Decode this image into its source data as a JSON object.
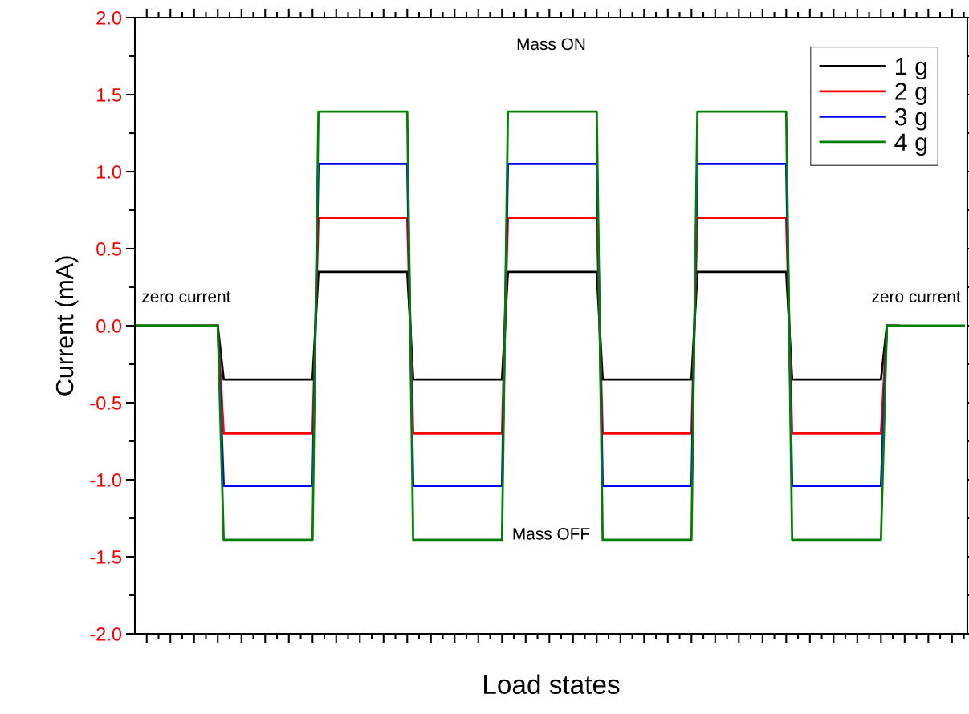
{
  "chart_data": {
    "type": "line",
    "xlabel": "Load states",
    "ylabel": "Current (mA)",
    "categories": [
      null,
      null,
      null,
      null,
      null,
      null,
      null,
      null,
      null,
      null,
      null,
      null,
      null,
      null,
      null,
      null,
      null,
      null,
      null,
      null,
      null,
      null,
      null,
      null,
      null,
      null,
      null,
      null,
      null,
      null,
      null,
      null,
      null,
      null,
      null,
      null,
      null,
      null,
      null,
      null,
      null,
      null,
      null,
      null,
      null,
      null,
      null,
      null,
      null,
      null,
      null,
      null,
      null,
      null,
      null,
      null,
      null,
      null,
      null,
      null,
      null,
      null,
      null,
      null,
      null,
      null,
      null,
      null,
      null,
      null,
      null,
      null,
      null,
      null,
      null,
      null,
      null,
      null,
      null,
      null,
      null,
      null,
      null,
      null,
      null,
      null,
      null,
      null,
      null,
      null,
      null,
      null,
      null,
      null,
      null,
      null,
      null,
      null,
      null,
      null,
      null,
      null,
      null,
      null,
      null,
      null,
      null,
      null,
      null,
      null,
      null,
      null,
      null,
      null,
      null,
      null,
      null,
      null,
      null,
      null,
      null,
      null,
      null,
      null,
      null,
      null,
      null,
      null,
      null,
      null,
      null,
      null,
      null,
      null,
      null,
      null,
      null,
      null,
      null,
      null,
      null
    ],
    "series": [
      {
        "name": "1 g",
        "color": "#000000",
        "values": [
          0,
          0,
          0,
          0,
          0,
          0,
          0,
          0,
          0,
          0,
          0,
          0,
          0,
          0,
          0,
          -0.35,
          -0.35,
          -0.35,
          -0.35,
          -0.35,
          -0.35,
          -0.35,
          -0.35,
          -0.35,
          -0.35,
          -0.35,
          -0.35,
          -0.35,
          -0.35,
          -0.35,
          -0.35,
          0.35,
          0.35,
          0.35,
          0.35,
          0.35,
          0.35,
          0.35,
          0.35,
          0.35,
          0.35,
          0.35,
          0.35,
          0.35,
          0.35,
          0.35,
          0.35,
          -0.35,
          -0.35,
          -0.35,
          -0.35,
          -0.35,
          -0.35,
          -0.35,
          -0.35,
          -0.35,
          -0.35,
          -0.35,
          -0.35,
          -0.35,
          -0.35,
          -0.35,
          -0.35,
          0.35,
          0.35,
          0.35,
          0.35,
          0.35,
          0.35,
          0.35,
          0.35,
          0.35,
          0.35,
          0.35,
          0.35,
          0.35,
          0.35,
          0.35,
          0.35,
          -0.35,
          -0.35,
          -0.35,
          -0.35,
          -0.35,
          -0.35,
          -0.35,
          -0.35,
          -0.35,
          -0.35,
          -0.35,
          -0.35,
          -0.35,
          -0.35,
          -0.35,
          -0.35,
          0.35,
          0.35,
          0.35,
          0.35,
          0.35,
          0.35,
          0.35,
          0.35,
          0.35,
          0.35,
          0.35,
          0.35,
          0.35,
          0.35,
          0.35,
          0.35,
          -0.35,
          -0.35,
          -0.35,
          -0.35,
          -0.35,
          -0.35,
          -0.35,
          -0.35,
          -0.35,
          -0.35,
          -0.35,
          -0.35,
          -0.35,
          -0.35,
          -0.35,
          -0.35,
          0,
          0,
          0,
          null,
          null,
          null,
          null,
          null,
          null,
          null,
          null,
          null,
          null,
          null
        ]
      },
      {
        "name": "2 g",
        "color": "#ff0000",
        "values": [
          null,
          null,
          null,
          null,
          null,
          null,
          null,
          null,
          null,
          null,
          null,
          null,
          null,
          0,
          0,
          -0.7,
          -0.7,
          -0.7,
          -0.7,
          -0.7,
          -0.7,
          -0.7,
          -0.7,
          -0.7,
          -0.7,
          -0.7,
          -0.7,
          -0.7,
          -0.7,
          -0.7,
          -0.7,
          0.7,
          0.7,
          0.7,
          0.7,
          0.7,
          0.7,
          0.7,
          0.7,
          0.7,
          0.7,
          0.7,
          0.7,
          0.7,
          0.7,
          0.7,
          0.7,
          -0.7,
          -0.7,
          -0.7,
          -0.7,
          -0.7,
          -0.7,
          -0.7,
          -0.7,
          -0.7,
          -0.7,
          -0.7,
          -0.7,
          -0.7,
          -0.7,
          -0.7,
          -0.7,
          0.7,
          0.7,
          0.7,
          0.7,
          0.7,
          0.7,
          0.7,
          0.7,
          0.7,
          0.7,
          0.7,
          0.7,
          0.7,
          0.7,
          0.7,
          0.7,
          -0.7,
          -0.7,
          -0.7,
          -0.7,
          -0.7,
          -0.7,
          -0.7,
          -0.7,
          -0.7,
          -0.7,
          -0.7,
          -0.7,
          -0.7,
          -0.7,
          -0.7,
          -0.7,
          0.7,
          0.7,
          0.7,
          0.7,
          0.7,
          0.7,
          0.7,
          0.7,
          0.7,
          0.7,
          0.7,
          0.7,
          0.7,
          0.7,
          0.7,
          0.7,
          -0.7,
          -0.7,
          -0.7,
          -0.7,
          -0.7,
          -0.7,
          -0.7,
          -0.7,
          -0.7,
          -0.7,
          -0.7,
          -0.7,
          -0.7,
          -0.7,
          -0.7,
          -0.7,
          0,
          0,
          null,
          null,
          null,
          null,
          null,
          null,
          null,
          null,
          null,
          null,
          null,
          null
        ]
      },
      {
        "name": "3 g",
        "color": "#0000ff",
        "values": [
          null,
          null,
          null,
          null,
          null,
          null,
          null,
          null,
          null,
          null,
          null,
          null,
          null,
          null,
          0,
          -1.04,
          -1.04,
          -1.04,
          -1.04,
          -1.04,
          -1.04,
          -1.04,
          -1.04,
          -1.04,
          -1.04,
          -1.04,
          -1.04,
          -1.04,
          -1.04,
          -1.04,
          -1.04,
          1.05,
          1.05,
          1.05,
          1.05,
          1.05,
          1.05,
          1.05,
          1.05,
          1.05,
          1.05,
          1.05,
          1.05,
          1.05,
          1.05,
          1.05,
          1.05,
          -1.04,
          -1.04,
          -1.04,
          -1.04,
          -1.04,
          -1.04,
          -1.04,
          -1.04,
          -1.04,
          -1.04,
          -1.04,
          -1.04,
          -1.04,
          -1.04,
          -1.04,
          -1.04,
          1.05,
          1.05,
          1.05,
          1.05,
          1.05,
          1.05,
          1.05,
          1.05,
          1.05,
          1.05,
          1.05,
          1.05,
          1.05,
          1.05,
          1.05,
          1.05,
          -1.04,
          -1.04,
          -1.04,
          -1.04,
          -1.04,
          -1.04,
          -1.04,
          -1.04,
          -1.04,
          -1.04,
          -1.04,
          -1.04,
          -1.04,
          -1.04,
          -1.04,
          -1.04,
          1.05,
          1.05,
          1.05,
          1.05,
          1.05,
          1.05,
          1.05,
          1.05,
          1.05,
          1.05,
          1.05,
          1.05,
          1.05,
          1.05,
          1.05,
          1.05,
          -1.04,
          -1.04,
          -1.04,
          -1.04,
          -1.04,
          -1.04,
          -1.04,
          -1.04,
          -1.04,
          -1.04,
          -1.04,
          -1.04,
          -1.04,
          -1.04,
          -1.04,
          -1.04,
          0,
          null,
          null,
          null,
          null,
          null,
          null,
          null,
          null,
          null,
          null,
          null,
          null,
          null
        ]
      },
      {
        "name": "4 g",
        "color": "#008000",
        "values": [
          0,
          0,
          0,
          0,
          0,
          0,
          0,
          0,
          0,
          0,
          0,
          0,
          0,
          0,
          0,
          -1.39,
          -1.39,
          -1.39,
          -1.39,
          -1.39,
          -1.39,
          -1.39,
          -1.39,
          -1.39,
          -1.39,
          -1.39,
          -1.39,
          -1.39,
          -1.39,
          -1.39,
          -1.39,
          1.39,
          1.39,
          1.39,
          1.39,
          1.39,
          1.39,
          1.39,
          1.39,
          1.39,
          1.39,
          1.39,
          1.39,
          1.39,
          1.39,
          1.39,
          1.39,
          -1.39,
          -1.39,
          -1.39,
          -1.39,
          -1.39,
          -1.39,
          -1.39,
          -1.39,
          -1.39,
          -1.39,
          -1.39,
          -1.39,
          -1.39,
          -1.39,
          -1.39,
          -1.39,
          1.39,
          1.39,
          1.39,
          1.39,
          1.39,
          1.39,
          1.39,
          1.39,
          1.39,
          1.39,
          1.39,
          1.39,
          1.39,
          1.39,
          1.39,
          1.39,
          -1.39,
          -1.39,
          -1.39,
          -1.39,
          -1.39,
          -1.39,
          -1.39,
          -1.39,
          -1.39,
          -1.39,
          -1.39,
          -1.39,
          -1.39,
          -1.39,
          -1.39,
          -1.39,
          1.39,
          1.39,
          1.39,
          1.39,
          1.39,
          1.39,
          1.39,
          1.39,
          1.39,
          1.39,
          1.39,
          1.39,
          1.39,
          1.39,
          1.39,
          1.39,
          -1.39,
          -1.39,
          -1.39,
          -1.39,
          -1.39,
          -1.39,
          -1.39,
          -1.39,
          -1.39,
          -1.39,
          -1.39,
          -1.39,
          -1.39,
          -1.39,
          -1.39,
          -1.39,
          0,
          0,
          0,
          0,
          0,
          0,
          0,
          0,
          0,
          0,
          0,
          0,
          0,
          0
        ]
      }
    ],
    "ylim": [
      -2,
      2
    ],
    "yticks": [
      {
        "value": -2,
        "label": "-2.0"
      },
      {
        "value": -1.5,
        "label": "-1.5"
      },
      {
        "value": -1,
        "label": "-1.0"
      },
      {
        "value": -0.5,
        "label": "-0.5"
      },
      {
        "value": 0,
        "label": "0.0"
      },
      {
        "value": 0.5,
        "label": "0.5"
      },
      {
        "value": 1,
        "label": "1.0"
      },
      {
        "value": 1.5,
        "label": "1.5"
      },
      {
        "value": 2,
        "label": "2.0"
      }
    ],
    "annotations": [
      "Mass ON",
      "Mass OFF",
      "zero current",
      "zero current"
    ],
    "tick_labels": "y",
    "legend": "top right",
    "grid": false,
    "line_style": "solid",
    "marker": "none"
  }
}
